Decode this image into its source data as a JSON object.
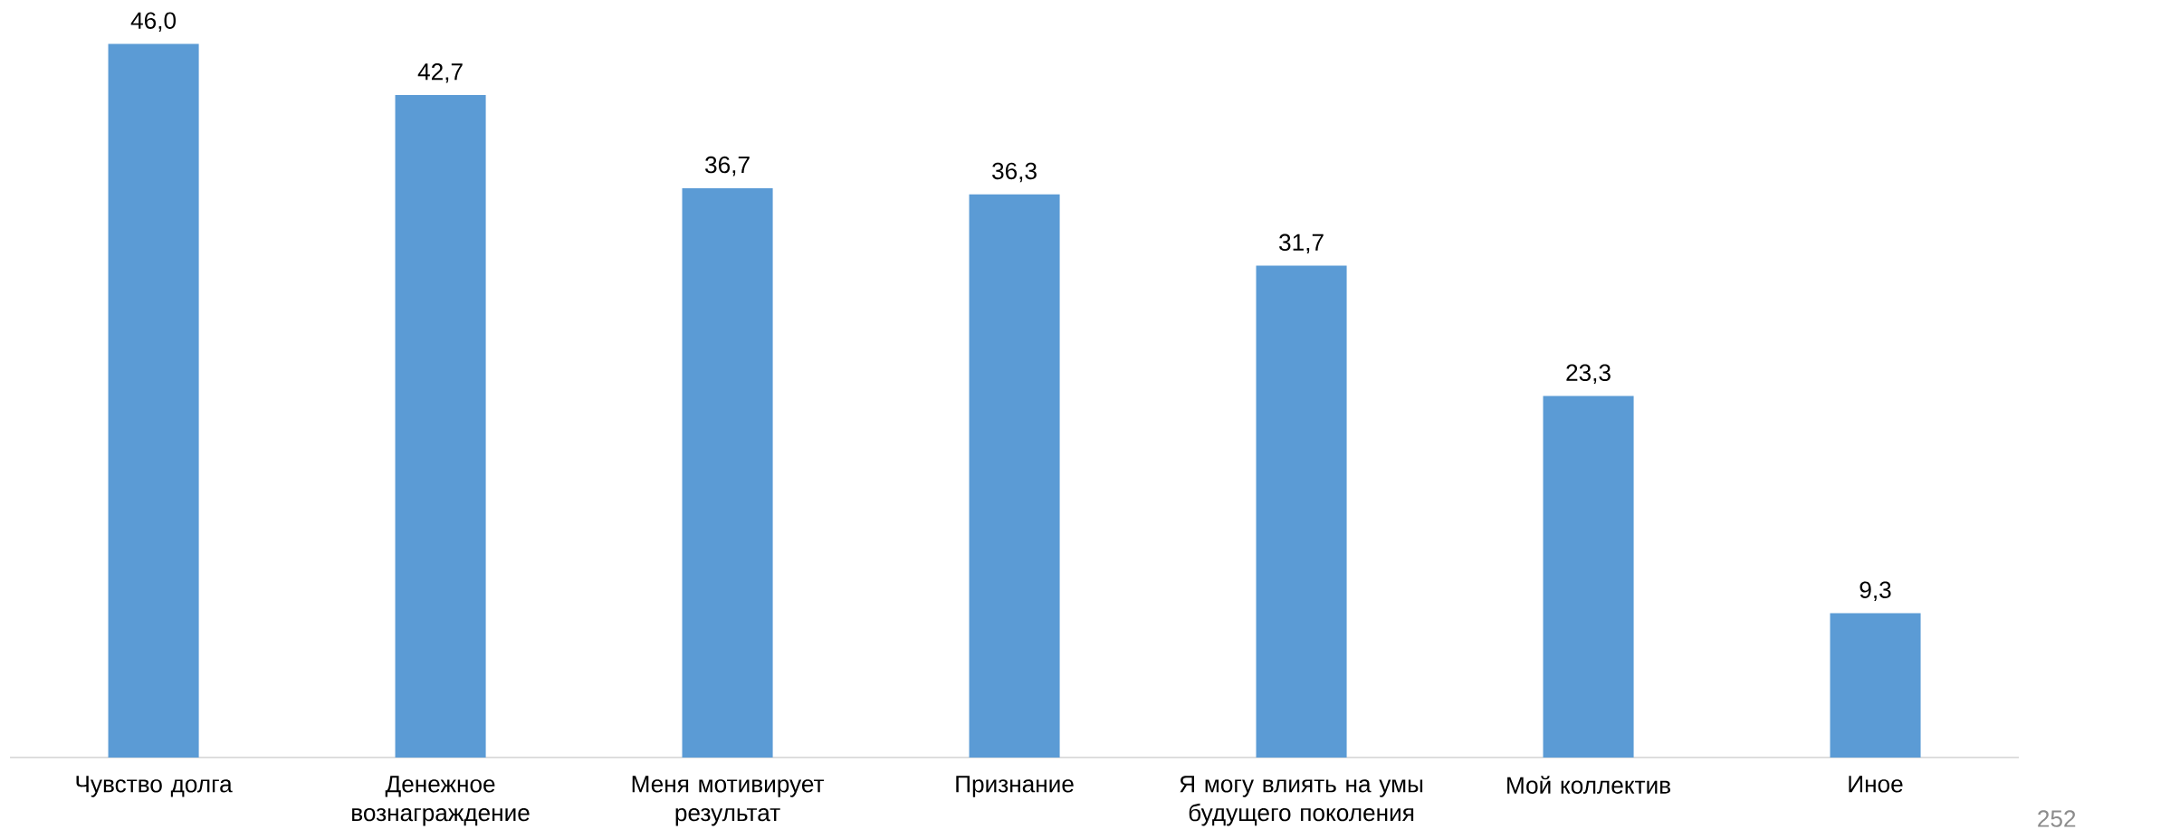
{
  "chart_data": {
    "type": "bar",
    "categories": [
      "Чувство долга",
      "Денежное вознаграждение",
      "Меня мотивирует результат",
      "Признание",
      "Я могу влиять на умы будущего поколения",
      "Мой коллектив",
      "Иное"
    ],
    "values": [
      46.0,
      42.7,
      36.7,
      36.3,
      31.7,
      23.3,
      9.3
    ],
    "value_labels": [
      "46,0",
      "42,7",
      "36,7",
      "36,3",
      "31,7",
      "23,3",
      "9,3"
    ],
    "color": "#5b9bd5",
    "annotations": [
      "252"
    ]
  }
}
